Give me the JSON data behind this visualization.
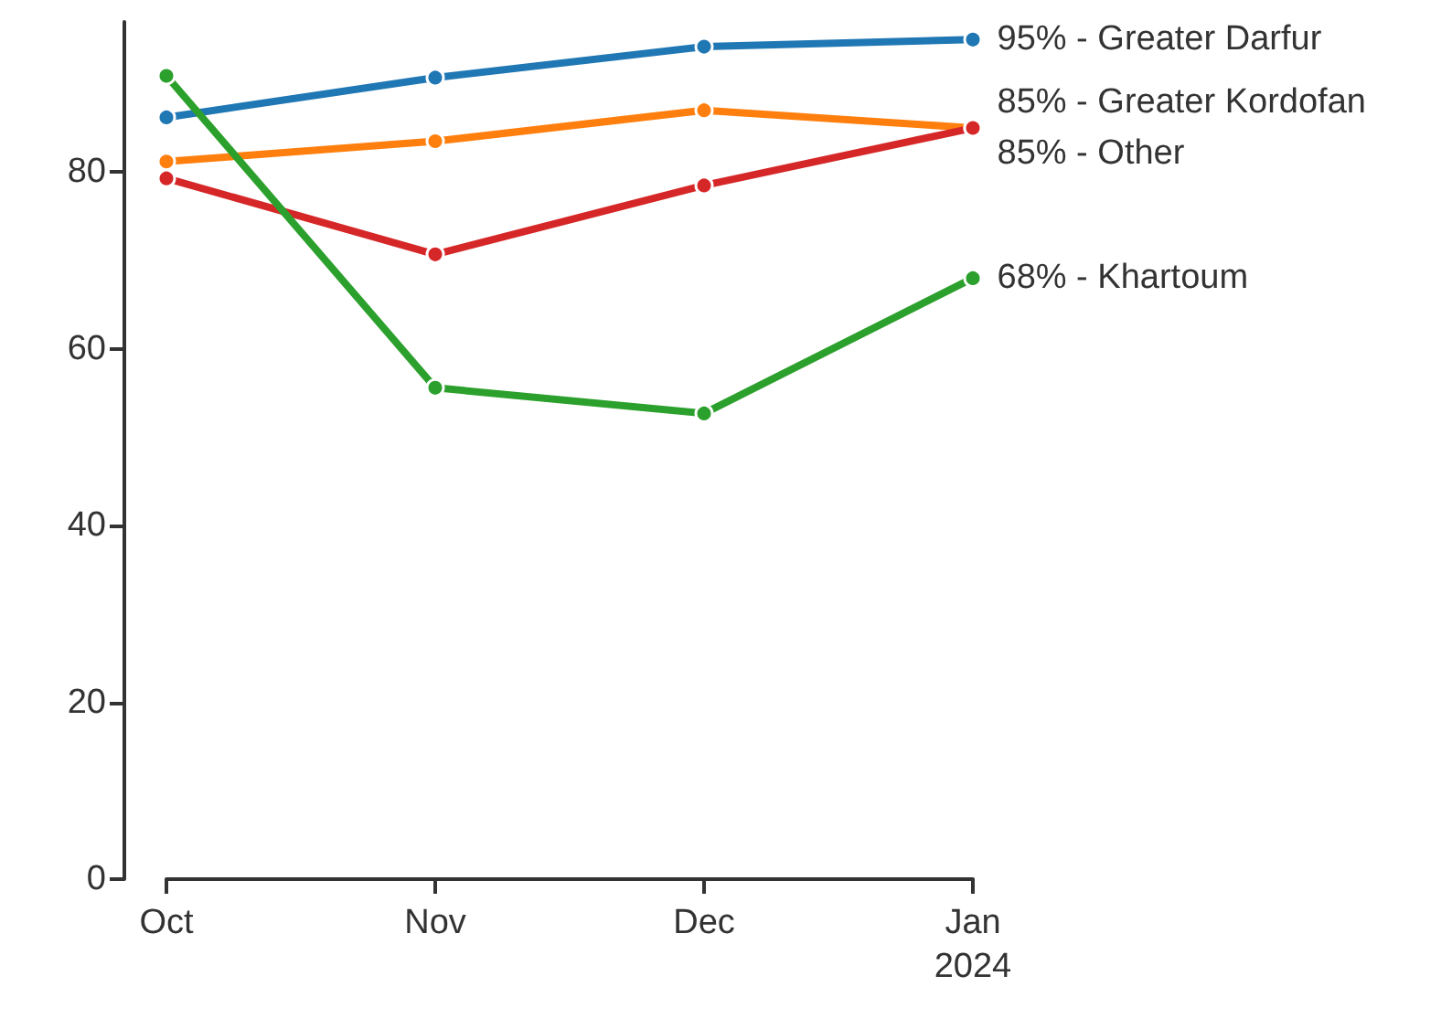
{
  "chart_data": {
    "type": "line",
    "categories": [
      "Oct",
      "Nov",
      "Dec",
      "Jan\n2024"
    ],
    "series": [
      {
        "color": "#1f77b4",
        "values": [
          86.2,
          90.7,
          94.2,
          95
        ],
        "value_labels": [
          null,
          null,
          null,
          "95% - Greater Darfur"
        ]
      },
      {
        "color": "#ff7f0e",
        "values": [
          81.2,
          83.5,
          87.0,
          85
        ],
        "value_labels": [
          null,
          null,
          null,
          "85% - Greater Kordofan"
        ]
      },
      {
        "color": "#d62728",
        "values": [
          79.3,
          70.7,
          78.5,
          85
        ],
        "value_labels": [
          null,
          null,
          null,
          "85% - Other"
        ]
      },
      {
        "color": "#2ca02c",
        "values": [
          90.9,
          55.6,
          52.7,
          68
        ],
        "value_labels": [
          null,
          null,
          null,
          "68% - Khartoum"
        ]
      }
    ],
    "ylim": [
      0,
      97
    ],
    "yticks": [
      0,
      20,
      40,
      60,
      80
    ],
    "grid": false,
    "marker": "circle",
    "line_style": "solid"
  }
}
